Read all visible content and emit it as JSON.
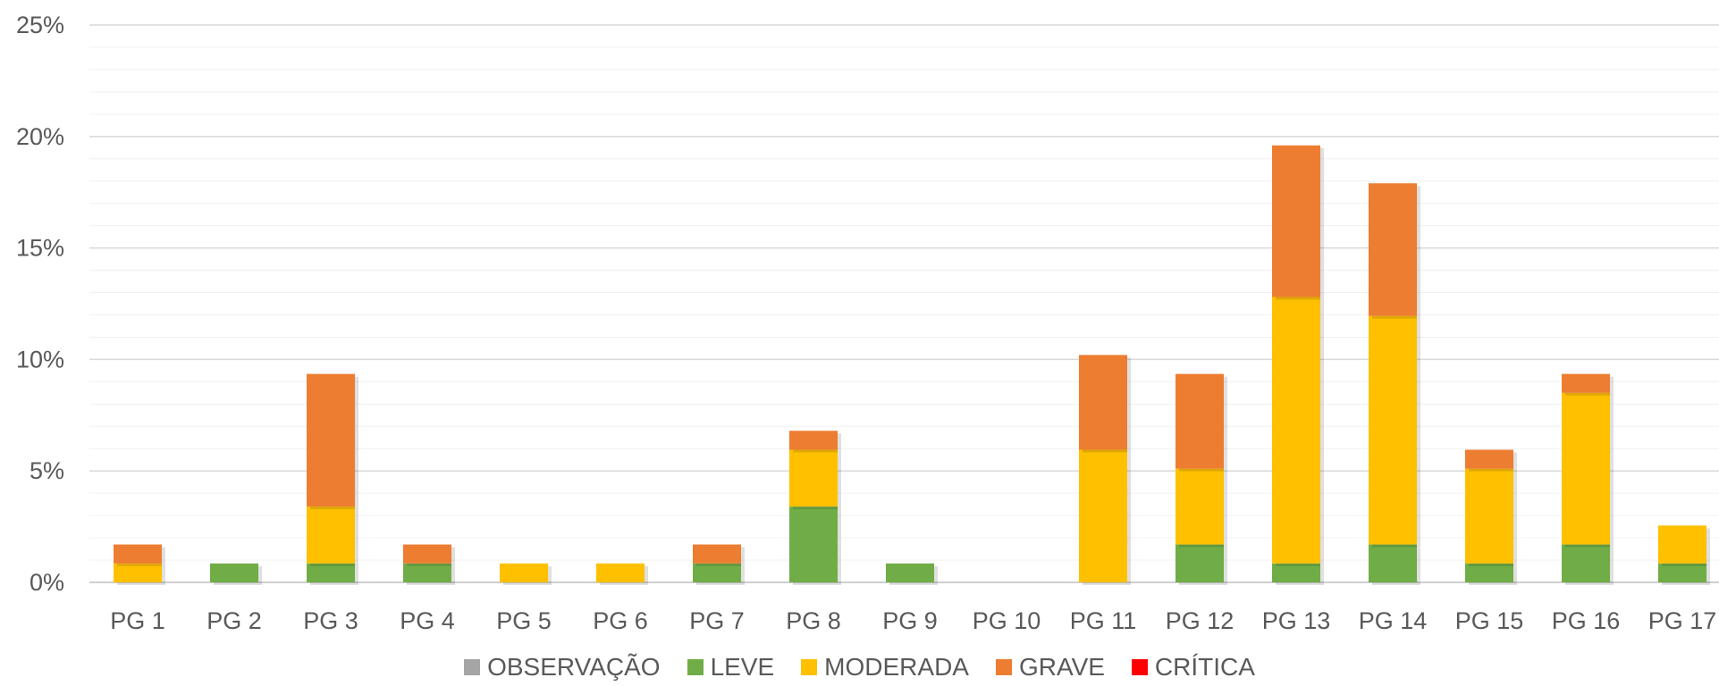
{
  "chart_data": {
    "type": "bar",
    "stacked": true,
    "categories": [
      "PG 1",
      "PG 2",
      "PG 3",
      "PG 4",
      "PG 5",
      "PG 6",
      "PG 7",
      "PG 8",
      "PG 9",
      "PG 10",
      "PG 11",
      "PG 12",
      "PG 13",
      "PG 14",
      "PG 15",
      "PG 16",
      "PG 17"
    ],
    "series": [
      {
        "name": "OBSERVAÇÃO",
        "color": "#a5a5a5",
        "values": [
          0,
          0,
          0,
          0,
          0,
          0,
          0,
          0,
          0,
          0,
          0,
          0,
          0,
          0,
          0,
          0,
          0
        ]
      },
      {
        "name": "LEVE",
        "color": "#70ad47",
        "values": [
          0,
          0.85,
          0.85,
          0.85,
          0,
          0,
          0.85,
          3.4,
          0.85,
          0,
          0,
          1.7,
          0.85,
          1.7,
          0.85,
          1.7,
          0.85
        ]
      },
      {
        "name": "MODERADA",
        "color": "#ffc000",
        "values": [
          0.85,
          0,
          2.55,
          0,
          0.85,
          0.85,
          0,
          2.55,
          0,
          0,
          5.95,
          3.4,
          11.95,
          10.25,
          4.25,
          6.8,
          1.7
        ]
      },
      {
        "name": "GRAVE",
        "color": "#ed7d31",
        "values": [
          0.85,
          0,
          5.95,
          0.85,
          0,
          0,
          0.85,
          0.85,
          0,
          0,
          4.25,
          4.25,
          6.8,
          5.95,
          0.85,
          0.85,
          0
        ]
      },
      {
        "name": "CRÍTICA",
        "color": "#ff0000",
        "values": [
          0,
          0,
          0,
          0,
          0,
          0,
          0,
          0,
          0,
          0,
          0,
          0,
          0,
          0,
          0,
          0,
          0
        ]
      }
    ],
    "yticks": [
      "0%",
      "5%",
      "10%",
      "15%",
      "20%",
      "25%"
    ],
    "ylim": [
      0,
      25
    ],
    "grid": true,
    "legend_position": "bottom"
  }
}
